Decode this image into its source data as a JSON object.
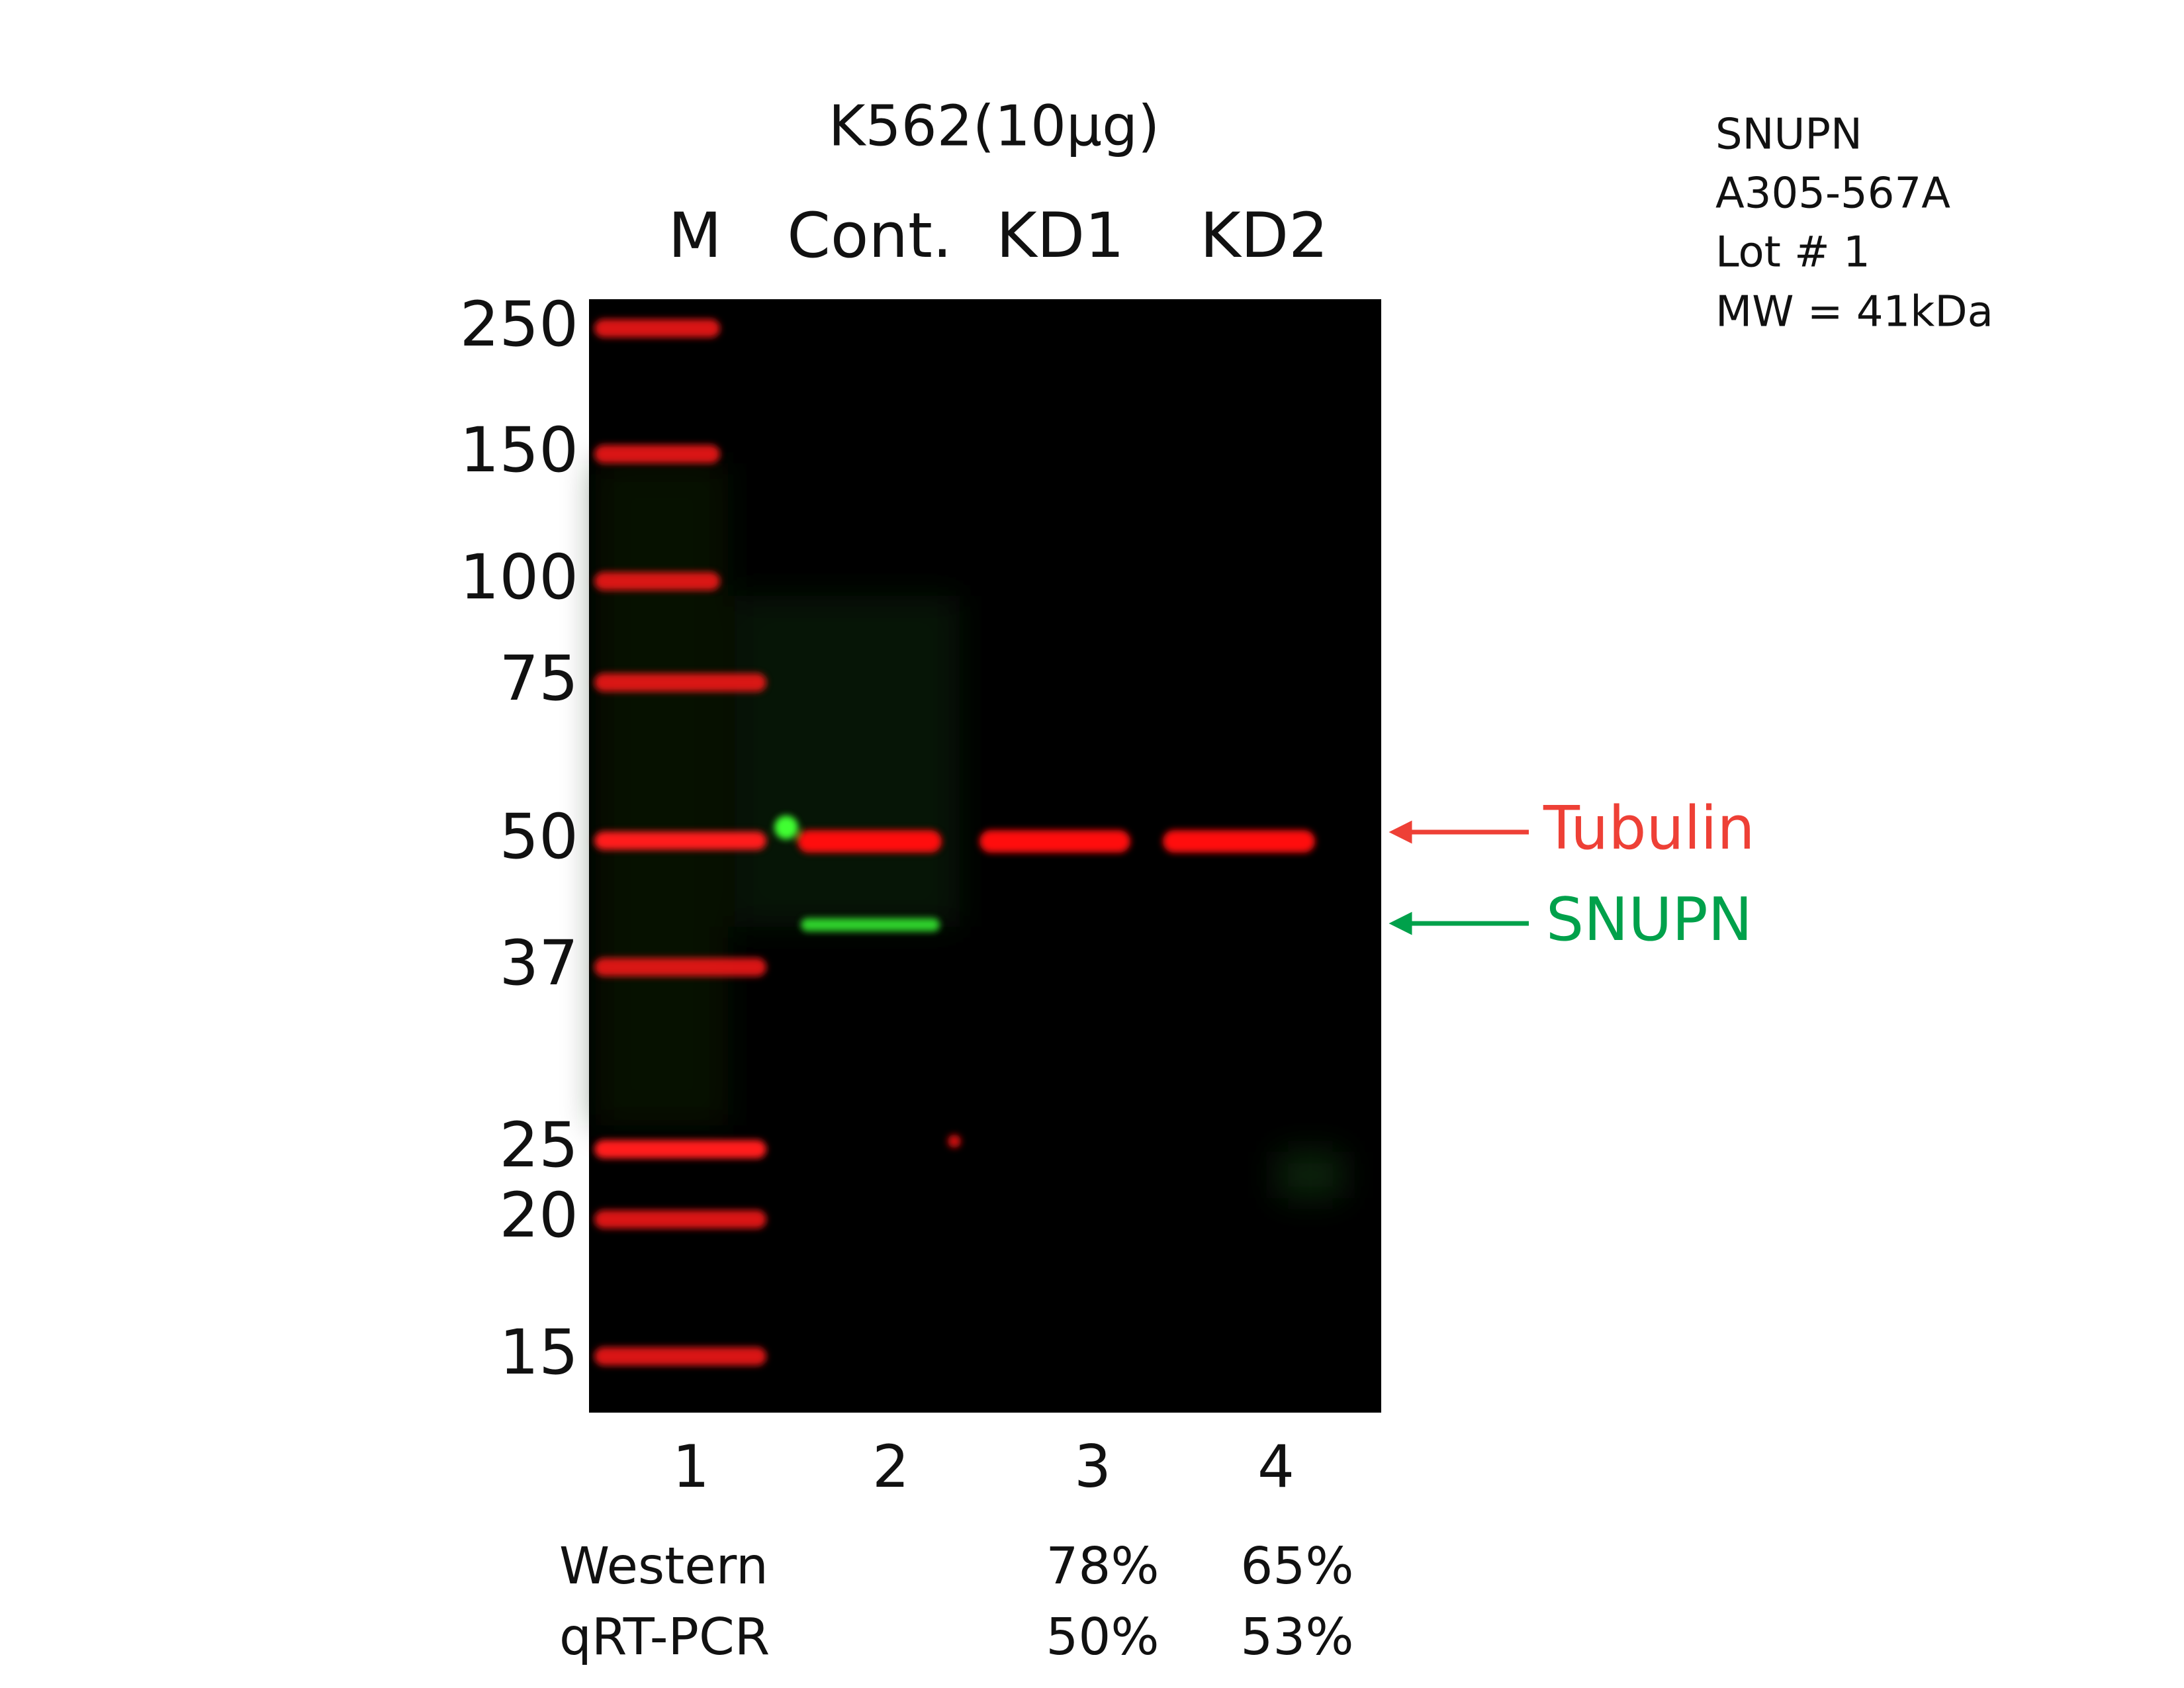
{
  "header": {
    "title": "K562(10µg)"
  },
  "lanes": [
    {
      "label": "M",
      "number": "1"
    },
    {
      "label": "Cont.",
      "number": "2"
    },
    {
      "label": "KD1",
      "number": "3"
    },
    {
      "label": "KD2",
      "number": "4"
    }
  ],
  "markers": [
    "250",
    "150",
    "100",
    "75",
    "50",
    "37",
    "25",
    "20",
    "15"
  ],
  "info": [
    "SNUPN",
    "A305-567A",
    "Lot # 1",
    "MW = 41kDa"
  ],
  "arrows": {
    "tubulin": "Tubulin",
    "target": "SNUPN"
  },
  "table": {
    "rows": [
      {
        "label": "Western",
        "values": [
          "78%",
          "65%"
        ]
      },
      {
        "label": "qRT-PCR",
        "values": [
          "50%",
          "53%"
        ]
      }
    ]
  }
}
